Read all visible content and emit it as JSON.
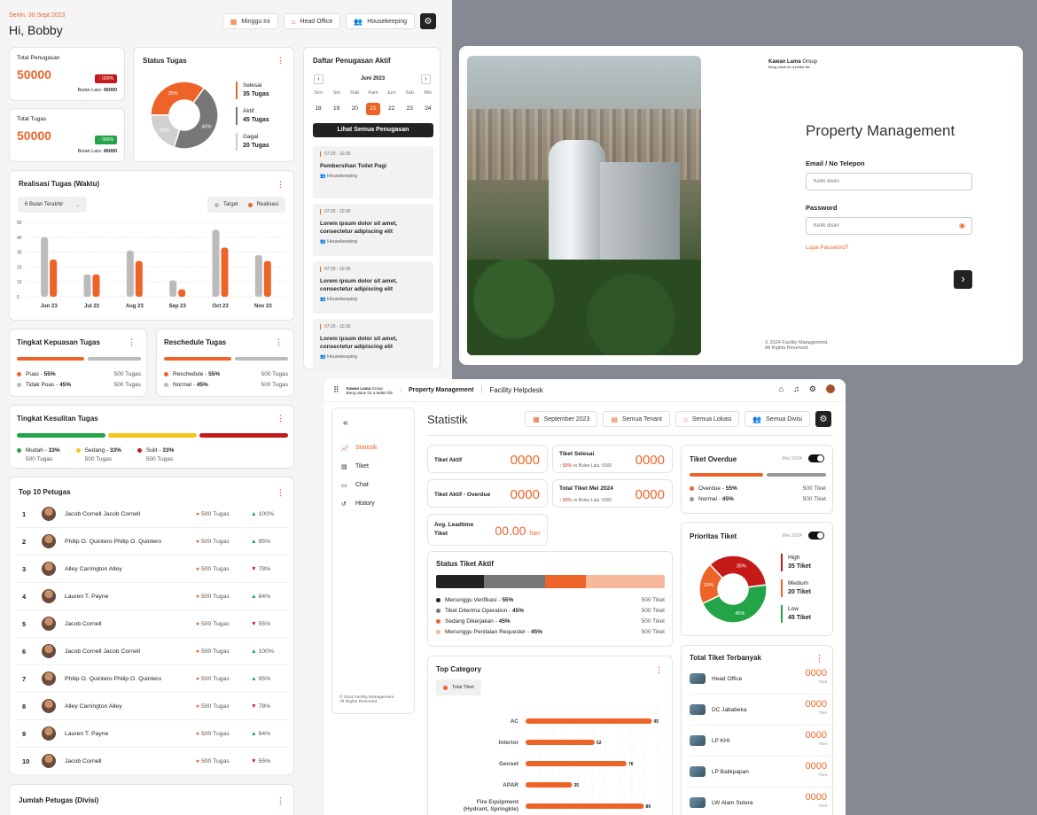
{
  "colors": {
    "accent": "#ee6428",
    "dark": "#222222",
    "green": "#22a447",
    "red": "#c41a1a",
    "yellow": "#f5c518",
    "grey": "#bbbbbb"
  },
  "left": {
    "date": "Senin, 30 Sept 2023",
    "greeting": "Hi, Bobby",
    "filters": [
      {
        "icon": "calendar-icon",
        "label": "Minggu Ini"
      },
      {
        "icon": "home-icon",
        "label": "Head Office"
      },
      {
        "icon": "users-icon",
        "label": "Housekeeping"
      }
    ],
    "total_penugasan": {
      "label": "Total Penugasan",
      "value": "50000",
      "badge": "↑ 000%",
      "prev_label": "Bulan Lalu:",
      "prev_value": "45000"
    },
    "total_tugas": {
      "label": "Total Tugas",
      "value": "50000",
      "badge": "↑ 000%",
      "prev_label": "Bulan Lalu:",
      "prev_value": "45000"
    },
    "status_tugas": {
      "title": "Status Tugas",
      "menu": "⋮",
      "legend": [
        {
          "label": "Selesai",
          "value": "35 Tugas",
          "color": "#ee6428"
        },
        {
          "label": "Aktif",
          "value": "45 Tugas",
          "color": "#777777"
        },
        {
          "label": "Gagal",
          "value": "20 Tugas",
          "color": "#cccccc"
        }
      ],
      "slices": [
        {
          "label": "35%",
          "value": 35,
          "color": "#ee6428"
        },
        {
          "label": "45%",
          "value": 45,
          "color": "#777777"
        },
        {
          "label": "20%",
          "value": 20,
          "color": "#d0d0d0"
        }
      ]
    },
    "daftar": {
      "title": "Daftar Penugasan Aktif",
      "month": "Juni 2023",
      "days": [
        "Sen",
        "Sel",
        "Rab",
        "Kam",
        "Jum",
        "Sab",
        "Min"
      ],
      "dates": [
        "18",
        "19",
        "20",
        "21",
        "22",
        "23",
        "24"
      ],
      "active_index": 3,
      "button": "Lihat Semua Penugasan",
      "items": [
        {
          "time": "07:20 - 10:30",
          "title": "Pembersihan Toilet Pagi",
          "dept": "Housekeeping"
        },
        {
          "time": "07:20 - 10:30",
          "title": "Lorem ipsum dolor sit amet, consectetur adipiscing elit",
          "dept": "Housekeeping"
        },
        {
          "time": "07:20 - 10:30",
          "title": "Lorem ipsum dolor sit amet, consectetur adipiscing elit",
          "dept": "Housekeeping"
        },
        {
          "time": "07:20 - 10:30",
          "title": "Lorem ipsum dolor sit amet, consectetur adipiscing elit",
          "dept": "Housekeeping"
        }
      ]
    },
    "realisasi": {
      "title": "Realisasi Tugas (Waktu)",
      "menu": "⋮",
      "dropdown": "6 Bulan Terakhir",
      "legend": [
        "Target",
        "Realisasi"
      ]
    },
    "kepuasan": {
      "title": "Tingkat Kepuasan Tugas",
      "menu": "⋮",
      "rows": [
        {
          "label": "Puas - ",
          "pct": "55%",
          "value": "500 Tugas",
          "color": "#ee6428"
        },
        {
          "label": "Tidak Puas - ",
          "pct": "45%",
          "value": "500 Tugas",
          "color": "#bbbbbb"
        }
      ]
    },
    "reschedule": {
      "title": "Reschedule Tugas",
      "menu": "⋮",
      "rows": [
        {
          "label": "Reschedule - ",
          "pct": "55%",
          "value": "500 Tugas",
          "color": "#ee6428"
        },
        {
          "label": "Normal - ",
          "pct": "45%",
          "value": "500 Tugas",
          "color": "#bbbbbb"
        }
      ]
    },
    "kesulitan": {
      "title": "Tingkat Kesulitan Tugas",
      "menu": "⋮",
      "rows": [
        {
          "label": "Mudah - ",
          "pct": "33%",
          "value": "500 Tugas",
          "color": "#22a447"
        },
        {
          "label": "Sedang - ",
          "pct": "33%",
          "value": "500 Tugas",
          "color": "#f5c518"
        },
        {
          "label": "Sulit - ",
          "pct": "33%",
          "value": "500 Tugas",
          "color": "#c41a1a"
        }
      ]
    },
    "top10": {
      "title": "Top 10 Petugas",
      "menu": "⋮",
      "rows": [
        {
          "rank": "1",
          "name": "Jacob Cornell Jacob Cornell",
          "tugas": "500 Tugas",
          "pct": "100%",
          "up": true
        },
        {
          "rank": "2",
          "name": "Philip O. Quintero Philip O. Quintero",
          "tugas": "500 Tugas",
          "pct": "95%",
          "up": true
        },
        {
          "rank": "3",
          "name": "Alley Carrington Alley",
          "tugas": "500 Tugas",
          "pct": "78%",
          "up": false
        },
        {
          "rank": "4",
          "name": "Lauren T. Payne",
          "tugas": "500 Tugas",
          "pct": "84%",
          "up": true
        },
        {
          "rank": "5",
          "name": "Jacob Cornell",
          "tugas": "500 Tugas",
          "pct": "55%",
          "up": false
        },
        {
          "rank": "6",
          "name": "Jacob Cornell Jacob Cornell",
          "tugas": "500 Tugas",
          "pct": "100%",
          "up": true
        },
        {
          "rank": "7",
          "name": "Philip O. Quintero Philip O. Quintero",
          "tugas": "500 Tugas",
          "pct": "95%",
          "up": true
        },
        {
          "rank": "8",
          "name": "Alley Carrington Alley",
          "tugas": "500 Tugas",
          "pct": "78%",
          "up": false
        },
        {
          "rank": "9",
          "name": "Lauren T. Payne",
          "tugas": "500 Tugas",
          "pct": "84%",
          "up": true
        },
        {
          "rank": "10",
          "name": "Jacob Cornell",
          "tugas": "500 Tugas",
          "pct": "55%",
          "up": false
        }
      ]
    },
    "jumlah": {
      "title": "Jumlah Petugas (Divisi)",
      "menu": "⋮"
    }
  },
  "chart_data": {
    "type": "bar",
    "categories": [
      "Jun 23",
      "Jul 23",
      "Aug 23",
      "Sep 23",
      "Oct 23",
      "Nov 23"
    ],
    "series": [
      {
        "name": "Target",
        "values": [
          40,
          15,
          31,
          11,
          45,
          28
        ]
      },
      {
        "name": "Realisasi",
        "values": [
          25,
          15,
          24,
          5,
          33,
          24
        ]
      }
    ],
    "yticks": [
      "0",
      "10",
      "20",
      "30",
      "40",
      "50"
    ],
    "ylim": [
      0,
      50
    ]
  },
  "login": {
    "brand": "Kawan Lama",
    "brand_suffix": "Group",
    "tagline": "Bring value for a better life",
    "heading": "Property Management",
    "email_label": "Email / No Telepon",
    "email_placeholder": "Ketik disini",
    "password_label": "Password",
    "password_placeholder": "Ketik disini",
    "forgot": "Lupa Password?",
    "submit": "›",
    "copyright": "© 2024 Facility Management.",
    "rights": "All Rights Reserved."
  },
  "helpdesk": {
    "brand": "Kawan Lama",
    "brand_suffix": "Group",
    "tagline": "Bring value for a better life",
    "app": "Property Management",
    "section": "Facility Helpdesk",
    "nav": [
      {
        "icon": "chart-icon",
        "label": "Statistik",
        "active": true
      },
      {
        "icon": "ticket-icon",
        "label": "Tiket"
      },
      {
        "icon": "chat-icon",
        "label": "Chat"
      },
      {
        "icon": "history-icon",
        "label": "History"
      }
    ],
    "nav_copyright": "© 2024 Facility Management.",
    "nav_rights": "All Rights Reserved.",
    "page_title": "Statistik",
    "filters": [
      {
        "icon": "calendar-icon",
        "label": "September 2023"
      },
      {
        "icon": "building-icon",
        "label": "Semua Tenant"
      },
      {
        "icon": "home-icon",
        "label": "Semua Lokasi"
      },
      {
        "icon": "users-icon",
        "label": "Semua Divisi"
      }
    ],
    "tiket_aktif": {
      "label": "Tiket Aktif",
      "value": "0000"
    },
    "tiket_selesai": {
      "label": "Tiket Selesai",
      "value": "0000",
      "delta": "↑ 50%",
      "vs": "vs Bulan Lalu: 5000"
    },
    "tiket_overdue_kpi": {
      "label": "Tiket Aktif - Overdue",
      "value": "0000"
    },
    "total_tiket": {
      "label": "Total Tiket Mei 2024",
      "value": "0000",
      "delta": "↑ 50%",
      "vs": "vs Bulan Lalu: 5000"
    },
    "leadtime": {
      "label": "Avg. Leadtime Tiket",
      "value": "00.00",
      "unit": "hari"
    },
    "status_aktif": {
      "title": "Status Tiket Aktif",
      "rows": [
        {
          "label": "Menunggu Verifikasi - ",
          "pct": "55%",
          "value": "500 Tiket",
          "color": "#222222"
        },
        {
          "label": "Tiket Diterima Operation - ",
          "pct": "45%",
          "value": "500 Tiket",
          "color": "#777777"
        },
        {
          "label": "Sedang Dikerjakan - ",
          "pct": "45%",
          "value": "500 Tiket",
          "color": "#ee6428"
        },
        {
          "label": "Menunggu Penilaian Requester - ",
          "pct": "45%",
          "value": "500 Tiket",
          "color": "#f8b89a"
        }
      ]
    },
    "top_category": {
      "title": "Top Category",
      "menu": "⋮",
      "chip": "Total Tiket",
      "rows": [
        {
          "label": "AC",
          "value": 95
        },
        {
          "label": "Interior",
          "value": 52
        },
        {
          "label": "Genset",
          "value": 76
        },
        {
          "label": "APAR",
          "value": 35
        },
        {
          "label": "Fire Equipment (Hydrant, Springkle)",
          "value": 89
        }
      ]
    },
    "overdue": {
      "title": "Tiket Overdue",
      "period": "Mei 2024",
      "rows": [
        {
          "label": "Overdue - ",
          "pct": "55%",
          "value": "500 Tiket",
          "color": "#ee6428"
        },
        {
          "label": "Normal - ",
          "pct": "45%",
          "value": "500 Tiket",
          "color": "#999999"
        }
      ]
    },
    "prioritas": {
      "title": "Prioritas Tiket",
      "period": "Mei 2024",
      "slices": [
        {
          "label": "35%",
          "value": 35,
          "color": "#c41a1a"
        },
        {
          "label": "45%",
          "value": 45,
          "color": "#22a447"
        },
        {
          "label": "20%",
          "value": 20,
          "color": "#ee6428"
        }
      ],
      "legend": [
        {
          "label": "High",
          "value": "35 Tiket",
          "color": "#c41a1a"
        },
        {
          "label": "Medium",
          "value": "20 Tiket",
          "color": "#ee6428"
        },
        {
          "label": "Low",
          "value": "45 Tiket",
          "color": "#22a447"
        }
      ]
    },
    "terbanyak": {
      "title": "Total Tiket Terbanyak",
      "menu": "⋮",
      "rows": [
        {
          "name": "Head Office",
          "value": "0000",
          "unit": "Tiket"
        },
        {
          "name": "DC Jababeka",
          "value": "0000",
          "unit": "Tiket"
        },
        {
          "name": "LP KHI",
          "value": "0000",
          "unit": "Tiket"
        },
        {
          "name": "LP Balikpapan",
          "value": "0000",
          "unit": "Tiket"
        },
        {
          "name": "LW Alam Sutera",
          "value": "0000",
          "unit": "Tiket"
        }
      ]
    }
  }
}
